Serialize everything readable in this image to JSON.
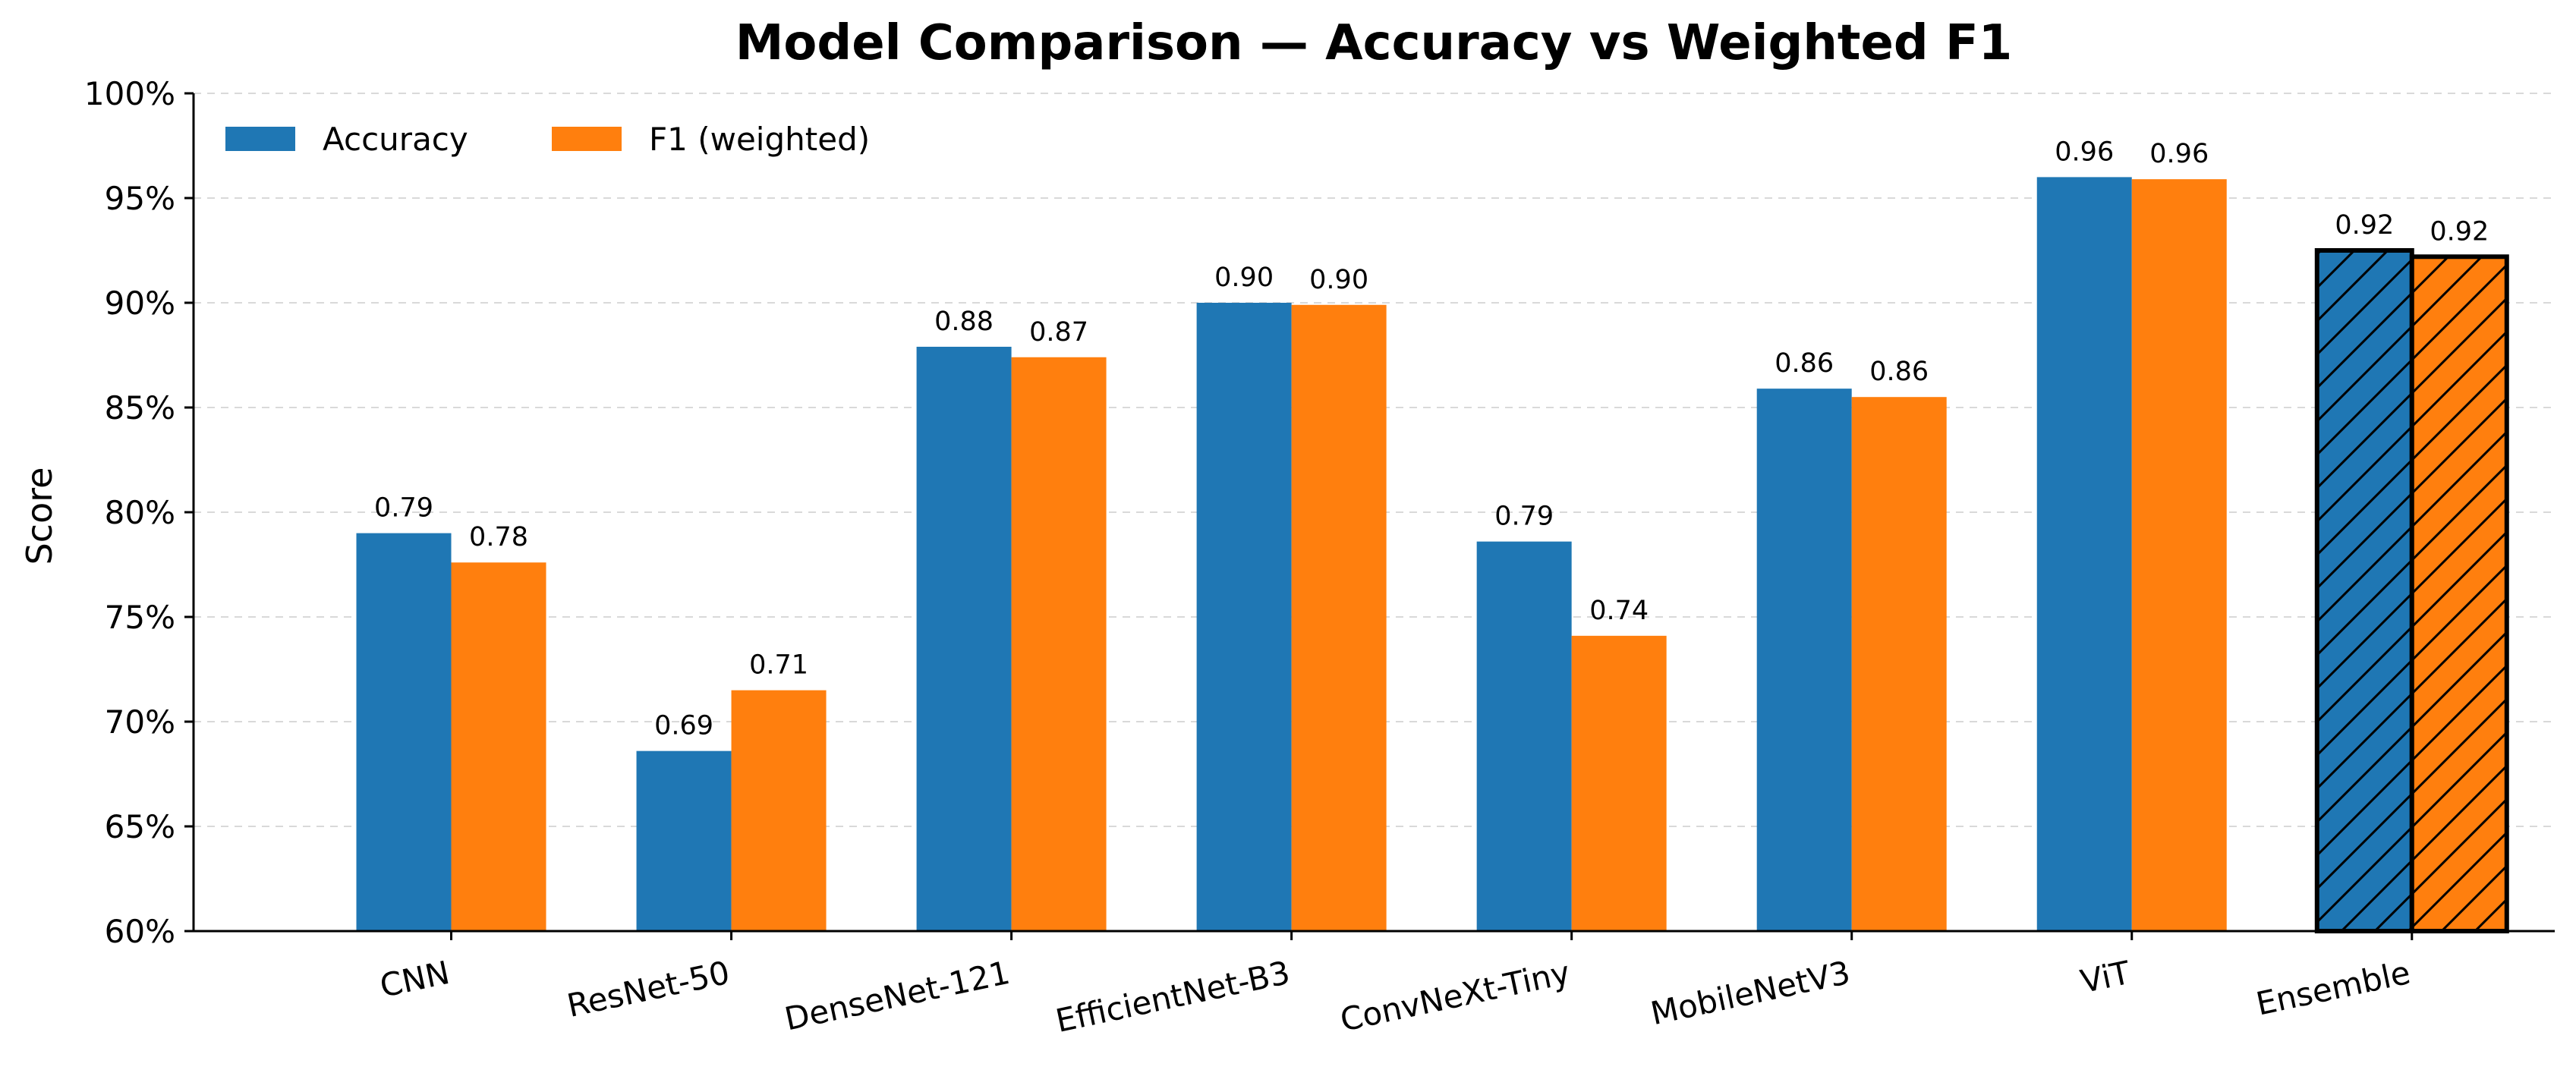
{
  "chart_data": {
    "type": "bar",
    "title": "Model Comparison — Accuracy vs Weighted F1",
    "xlabel": "",
    "ylabel": "Score",
    "ylim": [
      0.6,
      1.0
    ],
    "y_tick_values": [
      0.6,
      0.65,
      0.7,
      0.75,
      0.8,
      0.85,
      0.9,
      0.95,
      1.0
    ],
    "y_tick_labels": [
      "60%",
      "65%",
      "70%",
      "75%",
      "80%",
      "85%",
      "90%",
      "95%",
      "100%"
    ],
    "grid": "horizontal dashed",
    "legend_position": "top-left",
    "categories": [
      "CNN",
      "ResNet-50",
      "DenseNet-121",
      "EfficientNet-B3",
      "ConvNeXt-Tiny",
      "MobileNetV3",
      "ViT",
      "Ensemble"
    ],
    "highlighted_category": "Ensemble",
    "series": [
      {
        "name": "Accuracy",
        "color": "#1f77b4",
        "values": [
          0.79,
          0.686,
          0.879,
          0.9,
          0.786,
          0.859,
          0.96,
          0.925
        ],
        "labels": [
          "0.79",
          "0.69",
          "0.88",
          "0.90",
          "0.79",
          "0.86",
          "0.96",
          "0.92"
        ]
      },
      {
        "name": "F1 (weighted)",
        "color": "#ff7f0e",
        "values": [
          0.776,
          0.715,
          0.874,
          0.899,
          0.741,
          0.855,
          0.959,
          0.922
        ],
        "labels": [
          "0.78",
          "0.71",
          "0.87",
          "0.90",
          "0.74",
          "0.86",
          "0.96",
          "0.92"
        ]
      }
    ]
  }
}
